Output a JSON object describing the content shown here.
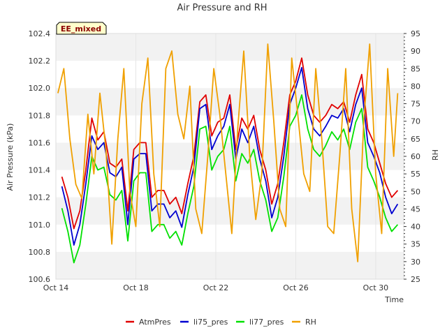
{
  "chart_data": {
    "type": "line",
    "title": "Air Pressure and RH",
    "xlabel": "Time",
    "ylabel": "Air Pressure (kPa)",
    "y2label": "RH",
    "badge": "EE_mixed",
    "x_ticks": [
      "Oct 14",
      "Oct 18",
      "Oct 22",
      "Oct 26",
      "Oct 30"
    ],
    "x_tick_days": [
      0,
      4,
      8,
      12,
      16
    ],
    "x_range_days": [
      0,
      17.4
    ],
    "ylim": [
      100.6,
      102.4
    ],
    "y_ticks": [
      "100.6",
      "100.8",
      "101.0",
      "101.2",
      "101.4",
      "101.6",
      "101.8",
      "102.0",
      "102.2",
      "102.4"
    ],
    "y2lim": [
      25,
      95
    ],
    "y2_ticks": [
      "25",
      "30",
      "35",
      "40",
      "45",
      "50",
      "55",
      "60",
      "65",
      "70",
      "75",
      "80",
      "85",
      "90",
      "95"
    ],
    "grid": "horizontal bands",
    "legend": "bottom",
    "series": [
      {
        "name": "AtmPres",
        "color": "#e00000",
        "axis": "left",
        "x": [
          0.3,
          0.6,
          0.9,
          1.2,
          1.5,
          1.8,
          2.1,
          2.4,
          2.7,
          3.0,
          3.3,
          3.6,
          3.9,
          4.2,
          4.5,
          4.8,
          5.1,
          5.4,
          5.7,
          6.0,
          6.3,
          6.6,
          6.9,
          7.2,
          7.5,
          7.8,
          8.1,
          8.4,
          8.7,
          9.0,
          9.3,
          9.6,
          9.9,
          10.2,
          10.5,
          10.8,
          11.1,
          11.4,
          11.7,
          12.0,
          12.3,
          12.6,
          12.9,
          13.2,
          13.5,
          13.8,
          14.1,
          14.4,
          14.7,
          15.0,
          15.3,
          15.6,
          15.9,
          16.2,
          16.5,
          16.8,
          17.1
        ],
        "y": [
          101.35,
          101.2,
          100.97,
          101.1,
          101.4,
          101.78,
          101.62,
          101.68,
          101.45,
          101.42,
          101.48,
          101.1,
          101.55,
          101.6,
          101.6,
          101.2,
          101.25,
          101.25,
          101.15,
          101.2,
          101.08,
          101.3,
          101.5,
          101.9,
          101.95,
          101.65,
          101.75,
          101.78,
          101.95,
          101.55,
          101.78,
          101.7,
          101.8,
          101.55,
          101.4,
          101.15,
          101.3,
          101.6,
          101.95,
          102.05,
          102.22,
          101.95,
          101.8,
          101.75,
          101.8,
          101.88,
          101.85,
          101.9,
          101.75,
          101.95,
          102.1,
          101.7,
          101.6,
          101.45,
          101.3,
          101.2,
          101.25
        ]
      },
      {
        "name": "li75_pres",
        "color": "#0000d0",
        "axis": "left",
        "x": [
          0.3,
          0.6,
          0.9,
          1.2,
          1.5,
          1.8,
          2.1,
          2.4,
          2.7,
          3.0,
          3.3,
          3.6,
          3.9,
          4.2,
          4.5,
          4.8,
          5.1,
          5.4,
          5.7,
          6.0,
          6.3,
          6.6,
          6.9,
          7.2,
          7.5,
          7.8,
          8.1,
          8.4,
          8.7,
          9.0,
          9.3,
          9.6,
          9.9,
          10.2,
          10.5,
          10.8,
          11.1,
          11.4,
          11.7,
          12.0,
          12.3,
          12.6,
          12.9,
          13.2,
          13.5,
          13.8,
          14.1,
          14.4,
          14.7,
          15.0,
          15.3,
          15.6,
          15.9,
          16.2,
          16.5,
          16.8,
          17.1
        ],
        "y": [
          101.28,
          101.1,
          100.85,
          101.0,
          101.3,
          101.65,
          101.55,
          101.6,
          101.38,
          101.35,
          101.42,
          101.0,
          101.48,
          101.52,
          101.52,
          101.1,
          101.15,
          101.15,
          101.05,
          101.1,
          100.98,
          101.22,
          101.42,
          101.85,
          101.88,
          101.55,
          101.65,
          101.72,
          101.88,
          101.48,
          101.7,
          101.6,
          101.72,
          101.48,
          101.32,
          101.05,
          101.2,
          101.5,
          101.88,
          102.0,
          102.15,
          101.85,
          101.7,
          101.65,
          101.72,
          101.8,
          101.78,
          101.85,
          101.68,
          101.88,
          102.0,
          101.6,
          101.5,
          101.38,
          101.2,
          101.08,
          101.15
        ]
      },
      {
        "name": "li77_pres",
        "color": "#00e000",
        "axis": "left",
        "x": [
          0.3,
          0.6,
          0.9,
          1.2,
          1.5,
          1.8,
          2.1,
          2.4,
          2.7,
          3.0,
          3.3,
          3.6,
          3.9,
          4.2,
          4.5,
          4.8,
          5.1,
          5.4,
          5.7,
          6.0,
          6.3,
          6.6,
          6.9,
          7.2,
          7.5,
          7.8,
          8.1,
          8.4,
          8.7,
          9.0,
          9.3,
          9.6,
          9.9,
          10.2,
          10.5,
          10.8,
          11.1,
          11.4,
          11.7,
          12.0,
          12.3,
          12.6,
          12.9,
          13.2,
          13.5,
          13.8,
          14.1,
          14.4,
          14.7,
          15.0,
          15.3,
          15.6,
          15.9,
          16.2,
          16.5,
          16.8,
          17.1
        ],
        "y": [
          101.12,
          100.95,
          100.72,
          100.85,
          101.15,
          101.5,
          101.4,
          101.42,
          101.22,
          101.18,
          101.25,
          100.88,
          101.32,
          101.38,
          101.38,
          100.95,
          101.0,
          101.0,
          100.9,
          100.95,
          100.85,
          101.08,
          101.28,
          101.7,
          101.72,
          101.4,
          101.5,
          101.55,
          101.72,
          101.32,
          101.52,
          101.45,
          101.55,
          101.32,
          101.18,
          100.95,
          101.05,
          101.35,
          101.72,
          101.8,
          101.95,
          101.7,
          101.55,
          101.5,
          101.58,
          101.68,
          101.62,
          101.7,
          101.55,
          101.75,
          101.85,
          101.42,
          101.32,
          101.2,
          101.05,
          100.95,
          101.0
        ]
      },
      {
        "name": "RH",
        "color": "#f0a000",
        "axis": "right",
        "x": [
          0.1,
          0.4,
          0.7,
          1.0,
          1.3,
          1.6,
          1.9,
          2.2,
          2.5,
          2.8,
          3.1,
          3.4,
          3.7,
          4.0,
          4.3,
          4.6,
          4.9,
          5.2,
          5.5,
          5.8,
          6.1,
          6.4,
          6.7,
          7.0,
          7.3,
          7.6,
          7.9,
          8.2,
          8.5,
          8.8,
          9.1,
          9.4,
          9.7,
          10.0,
          10.3,
          10.6,
          10.9,
          11.2,
          11.5,
          11.8,
          12.1,
          12.4,
          12.7,
          13.0,
          13.3,
          13.6,
          13.9,
          14.2,
          14.5,
          14.8,
          15.1,
          15.4,
          15.7,
          16.0,
          16.3,
          16.6,
          16.9,
          17.1
        ],
        "y": [
          78,
          85,
          65,
          52,
          48,
          72,
          55,
          78,
          62,
          35,
          65,
          85,
          50,
          40,
          75,
          88,
          55,
          40,
          85,
          90,
          72,
          65,
          80,
          45,
          38,
          60,
          85,
          72,
          55,
          38,
          68,
          90,
          60,
          42,
          55,
          92,
          70,
          45,
          40,
          88,
          72,
          55,
          50,
          85,
          65,
          40,
          38,
          60,
          85,
          45,
          30,
          70,
          92,
          55,
          38,
          85,
          60,
          78
        ]
      }
    ]
  }
}
